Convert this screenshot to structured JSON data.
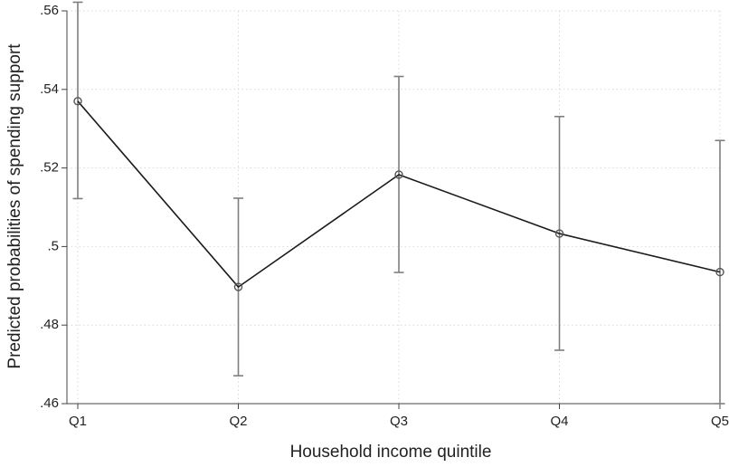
{
  "chart_data": {
    "type": "line",
    "title": "",
    "xlabel": "Household income quintile",
    "ylabel": "Predicted probabilities of spending support",
    "categories": [
      "Q1",
      "Q2",
      "Q3",
      "Q4",
      "Q5"
    ],
    "values": [
      0.537,
      0.4897,
      0.5183,
      0.5033,
      0.4935
    ],
    "ci_lower": [
      0.5122,
      0.4671,
      0.4934,
      0.4736,
      0.46
    ],
    "ci_upper": [
      0.5622,
      0.5123,
      0.5433,
      0.5331,
      0.527
    ],
    "ylim": [
      0.46,
      0.56
    ],
    "yticks": [
      0.46,
      0.48,
      0.5,
      0.52,
      0.54,
      0.56
    ],
    "ytick_labels": [
      ".46",
      ".48",
      ".5",
      ".52",
      ".54",
      ".56"
    ],
    "grid": true,
    "colors": {
      "line": "#1a1a1a",
      "errorbar": "#7f7f7f",
      "marker": "#555555",
      "grid": "#d9d9d9"
    }
  }
}
